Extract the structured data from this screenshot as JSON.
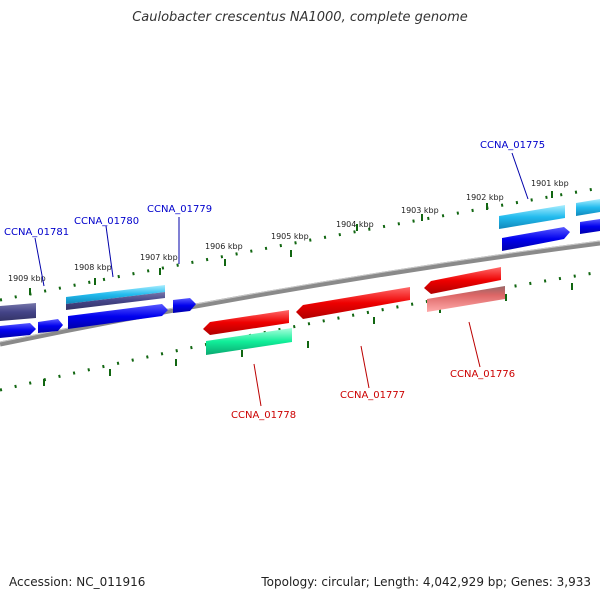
{
  "title": "Caulobacter crescentus NA1000, complete genome",
  "footer": {
    "accession": "Accession: NC_011916",
    "summary": "Topology: circular; Length: 4,042,929 bp; Genes: 3,933"
  },
  "scale_labels": [
    "1901 kbp",
    "1902 kbp",
    "1903 kbp",
    "1904 kbp",
    "1905 kbp",
    "1906 kbp",
    "1907 kbp",
    "1908 kbp",
    "1909 kbp"
  ],
  "genes": [
    {
      "name": "CCNA_01775",
      "strand": "forward",
      "color": "#0000cc"
    },
    {
      "name": "CCNA_01776",
      "strand": "reverse",
      "color": "#cc0000"
    },
    {
      "name": "CCNA_01777",
      "strand": "reverse",
      "color": "#cc0000"
    },
    {
      "name": "CCNA_01778",
      "strand": "reverse",
      "color": "#cc0000"
    },
    {
      "name": "CCNA_01779",
      "strand": "forward",
      "color": "#0000cc"
    },
    {
      "name": "CCNA_01780",
      "strand": "forward",
      "color": "#0000cc"
    },
    {
      "name": "CCNA_01781",
      "strand": "forward",
      "color": "#0000cc"
    }
  ],
  "colors": {
    "forward_cds": "#0000ee",
    "reverse_cds": "#ee0000",
    "forward_gene": "#22bbee",
    "reverse_gene_green": "#11ee99",
    "reverse_gene_pink": "#dd6666",
    "other_feature": "#444488",
    "backbone": "#808080",
    "scale_ticks": "#116611"
  }
}
